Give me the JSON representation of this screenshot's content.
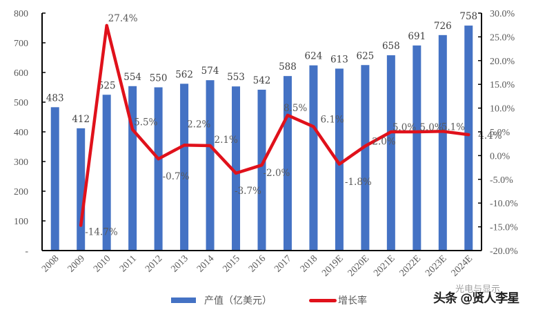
{
  "chart_data": {
    "type": "bar+line",
    "title": "",
    "categories": [
      "2008",
      "2009",
      "2010",
      "2011",
      "2012",
      "2013",
      "2014",
      "2015",
      "2016",
      "2017",
      "2018",
      "2019E",
      "2020E",
      "2021E",
      "2022E",
      "2023E",
      "2024E"
    ],
    "series": [
      {
        "name": "产值（亿美元）",
        "type": "bar",
        "axis": "left",
        "color": "#4472C4",
        "values": [
          483,
          412,
          525,
          554,
          550,
          562,
          574,
          553,
          542,
          588,
          624,
          613,
          625,
          658,
          691,
          726,
          758
        ],
        "labels": [
          "483",
          "412",
          "525",
          "554",
          "550",
          "562",
          "574",
          "553",
          "542",
          "588",
          "624",
          "613",
          "625",
          "658",
          "691",
          "726",
          "758"
        ]
      },
      {
        "name": "增长率",
        "type": "line",
        "axis": "right",
        "color": "#E0111B",
        "values": [
          null,
          -14.7,
          27.4,
          5.5,
          -0.7,
          2.2,
          2.1,
          -3.7,
          -2.0,
          8.5,
          6.1,
          -1.8,
          2.0,
          5.0,
          5.0,
          5.1,
          4.4
        ],
        "labels": [
          "",
          "-14.7%",
          "27.4%",
          "5.5%",
          "-0.7%",
          "2.2%",
          "2.1%",
          "-3.7%",
          "-2.0%",
          "8.5%",
          "6.1%",
          "-1.8%",
          "2.0%",
          "5.0%",
          "5.0%",
          "5.1%",
          "4.4%"
        ]
      }
    ],
    "left_axis": {
      "ylim": [
        0,
        800
      ],
      "ticks": [
        "-",
        "100",
        "200",
        "300",
        "400",
        "500",
        "600",
        "700",
        "800"
      ]
    },
    "right_axis": {
      "ylim": [
        -20,
        30
      ],
      "ticks": [
        "-20.0%",
        "-15.0%",
        "-10.0%",
        "-5.0%",
        "0.0%",
        "5.0%",
        "10.0%",
        "15.0%",
        "20.0%",
        "25.0%",
        "30.0%"
      ]
    },
    "xlabel": "",
    "ylabel": "",
    "grid": false,
    "legend_position": "bottom"
  },
  "legend": {
    "bar_label": "产值（亿美元）",
    "line_label": "增长率"
  },
  "watermark": {
    "main": "头条 @贤人李星",
    "sub": "光电与显示"
  }
}
